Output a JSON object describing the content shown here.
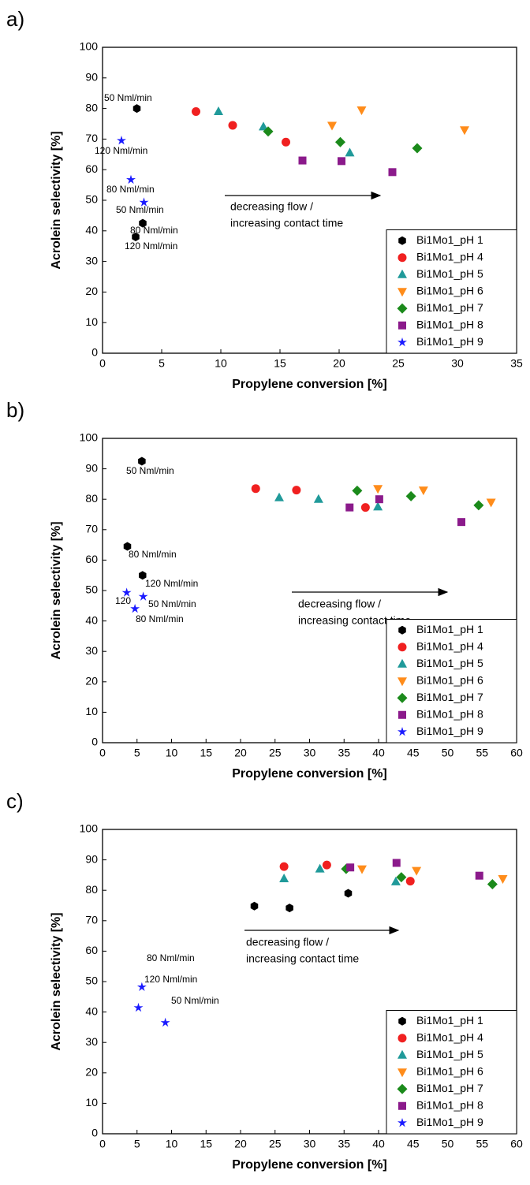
{
  "chart_data": [
    {
      "type": "scatter",
      "panel_label": "a)",
      "x_label": "Propylene conversion [%]",
      "y_label": "Acrolein selectivity [%]",
      "xlim": [
        0,
        35
      ],
      "xticks": [
        0,
        5,
        10,
        15,
        20,
        25,
        30,
        35
      ],
      "ylim": [
        0,
        100
      ],
      "yticks": [
        0,
        10,
        20,
        30,
        40,
        50,
        60,
        70,
        80,
        90,
        100
      ],
      "legend": "lower right",
      "series": [
        {
          "name": "Bi1Mo1_pH 1",
          "color": "#000000",
          "marker": "hexagon",
          "x": [
            2.9,
            3.4,
            2.8
          ],
          "values": [
            80,
            42.5,
            38
          ]
        },
        {
          "name": "Bi1Mo1_pH 4",
          "color": "#f02020",
          "marker": "circle",
          "x": [
            7.9,
            11,
            15.5
          ],
          "values": [
            79,
            74.5,
            69
          ]
        },
        {
          "name": "Bi1Mo1_pH 5",
          "color": "#209a9a",
          "marker": "triangle-up",
          "x": [
            9.8,
            13.6,
            20.9
          ],
          "values": [
            79,
            74,
            65.5
          ]
        },
        {
          "name": "Bi1Mo1_pH 6",
          "color": "#ff8c1a",
          "marker": "triangle-down",
          "x": [
            19.4,
            21.9,
            30.6
          ],
          "values": [
            74.5,
            79.5,
            73
          ]
        },
        {
          "name": "Bi1Mo1_pH 7",
          "color": "#1b8a1b",
          "marker": "diamond",
          "x": [
            14,
            20.1,
            26.6
          ],
          "values": [
            72.5,
            69,
            67
          ]
        },
        {
          "name": "Bi1Mo1_pH 8",
          "color": "#8b1a8b",
          "marker": "square",
          "x": [
            16.9,
            20.2,
            24.5
          ],
          "values": [
            63,
            62.8,
            59.2
          ]
        },
        {
          "name": "Bi1Mo1_pH 9",
          "color": "#1a1aff",
          "marker": "star",
          "x": [
            1.6,
            2.4,
            3.5
          ],
          "values": [
            69.5,
            56.7,
            49.3
          ]
        }
      ],
      "annotations": [
        "50 Nml/min",
        "120 Nml/min",
        "80 Nml/min",
        "50 Nml/min",
        "80 Nml/min",
        "120 Nml/min"
      ],
      "arrow_text": [
        "decreasing flow /",
        "increasing contact time"
      ]
    },
    {
      "type": "scatter",
      "panel_label": "b)",
      "x_label": "Propylene conversion [%]",
      "y_label": "Acrolein selectivity [%]",
      "xlim": [
        0,
        60
      ],
      "xticks": [
        0,
        5,
        10,
        15,
        20,
        25,
        30,
        35,
        40,
        45,
        50,
        55,
        60
      ],
      "ylim": [
        0,
        100
      ],
      "yticks": [
        0,
        10,
        20,
        30,
        40,
        50,
        60,
        70,
        80,
        90,
        100
      ],
      "legend": "lower right",
      "series": [
        {
          "name": "Bi1Mo1_pH 1",
          "color": "#000000",
          "marker": "hexagon",
          "x": [
            5.7,
            3.6,
            5.8
          ],
          "values": [
            92.5,
            64.5,
            55
          ]
        },
        {
          "name": "Bi1Mo1_pH 4",
          "color": "#f02020",
          "marker": "circle",
          "x": [
            22.2,
            28.1,
            38.1
          ],
          "values": [
            83.5,
            83,
            77.3
          ]
        },
        {
          "name": "Bi1Mo1_pH 5",
          "color": "#209a9a",
          "marker": "triangle-up",
          "x": [
            25.6,
            31.3,
            39.9
          ],
          "values": [
            80.5,
            80,
            77.5
          ]
        },
        {
          "name": "Bi1Mo1_pH 6",
          "color": "#ff8c1a",
          "marker": "triangle-down",
          "x": [
            39.9,
            46.5,
            56.3
          ],
          "values": [
            83.5,
            83,
            79
          ]
        },
        {
          "name": "Bi1Mo1_pH 7",
          "color": "#1b8a1b",
          "marker": "diamond",
          "x": [
            36.9,
            44.7,
            54.5
          ],
          "values": [
            82.8,
            81,
            78
          ]
        },
        {
          "name": "Bi1Mo1_pH 8",
          "color": "#8b1a8b",
          "marker": "square",
          "x": [
            35.8,
            40.1,
            52
          ],
          "values": [
            77.3,
            80,
            72.5
          ]
        },
        {
          "name": "Bi1Mo1_pH 9",
          "color": "#1a1aff",
          "marker": "star",
          "x": [
            3.5,
            5.9,
            4.7
          ],
          "values": [
            49.3,
            48,
            44
          ]
        }
      ],
      "annotations": [
        "50 Nml/min",
        "80 Nml/min",
        "120 Nml/min",
        "120",
        "50 Nml/min",
        "80 Nml/min"
      ],
      "arrow_text": [
        "decreasing flow /",
        "increasing contact time"
      ]
    },
    {
      "type": "scatter",
      "panel_label": "c)",
      "x_label": "Propylene conversion [%]",
      "y_label": "Acrolein selectivity [%]",
      "xlim": [
        0,
        60
      ],
      "xticks": [
        0,
        5,
        10,
        15,
        20,
        25,
        30,
        35,
        40,
        45,
        50,
        55,
        60
      ],
      "ylim": [
        0,
        100
      ],
      "yticks": [
        0,
        10,
        20,
        30,
        40,
        50,
        60,
        70,
        80,
        90,
        100
      ],
      "legend": "lower right",
      "series": [
        {
          "name": "Bi1Mo1_pH 1",
          "color": "#000000",
          "marker": "hexagon",
          "x": [
            22,
            27.1,
            35.6
          ],
          "values": [
            74.8,
            74.2,
            79
          ]
        },
        {
          "name": "Bi1Mo1_pH 4",
          "color": "#f02020",
          "marker": "circle",
          "x": [
            26.3,
            32.5,
            44.6
          ],
          "values": [
            87.8,
            88.3,
            83
          ]
        },
        {
          "name": "Bi1Mo1_pH 5",
          "color": "#209a9a",
          "marker": "triangle-up",
          "x": [
            26.3,
            31.5,
            42.5
          ],
          "values": [
            83.8,
            87,
            82.8
          ]
        },
        {
          "name": "Bi1Mo1_pH 6",
          "color": "#ff8c1a",
          "marker": "triangle-down",
          "x": [
            37.6,
            45.5,
            58
          ],
          "values": [
            87,
            86.5,
            83.8
          ]
        },
        {
          "name": "Bi1Mo1_pH 7",
          "color": "#1b8a1b",
          "marker": "diamond",
          "x": [
            35.3,
            43.3,
            56.5
          ],
          "values": [
            87,
            84.3,
            82
          ]
        },
        {
          "name": "Bi1Mo1_pH 8",
          "color": "#8b1a8b",
          "marker": "square",
          "x": [
            35.9,
            42.6,
            54.6
          ],
          "values": [
            87.5,
            89,
            84.8
          ]
        },
        {
          "name": "Bi1Mo1_pH 9",
          "color": "#1a1aff",
          "marker": "star",
          "x": [
            5.7,
            5.2,
            9.1
          ],
          "values": [
            48.2,
            41.4,
            36.5
          ]
        }
      ],
      "annotations": [
        "80 Nml/min",
        "120 Nml/min",
        "50 Nml/min"
      ],
      "arrow_text": [
        "decreasing flow /",
        "increasing contact time"
      ]
    }
  ]
}
